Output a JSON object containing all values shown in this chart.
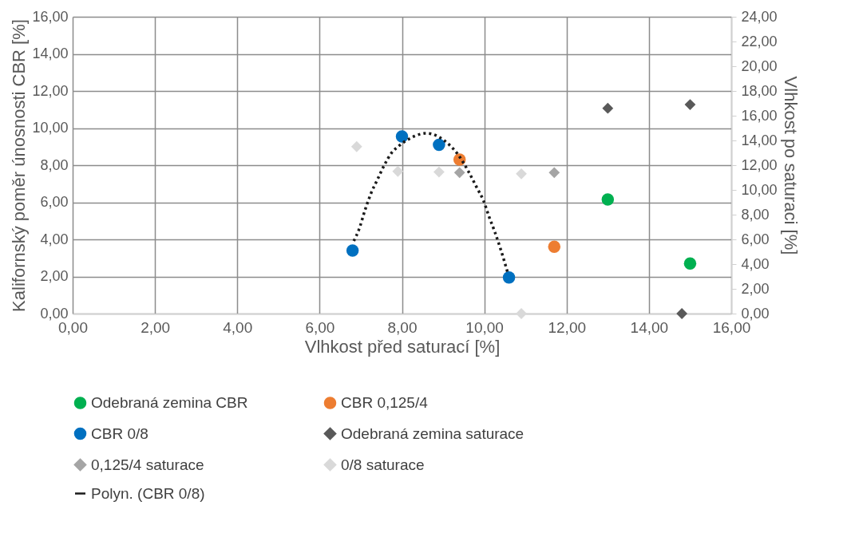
{
  "chart_data": {
    "type": "scatter",
    "xlabel": "Vlhkost před saturací [%]",
    "ylabel": "Kalifornský poměr únosnosti CBR [%]",
    "y2label": "Vlhkost po saturaci [%]",
    "xlim": [
      0,
      16
    ],
    "ylim": [
      0,
      16
    ],
    "y2lim": [
      0,
      24
    ],
    "xticks": [
      {
        "value": 0,
        "label": "0,00"
      },
      {
        "value": 2,
        "label": "2,00"
      },
      {
        "value": 4,
        "label": "4,00"
      },
      {
        "value": 6,
        "label": "6,00"
      },
      {
        "value": 8,
        "label": "8,00"
      },
      {
        "value": 10,
        "label": "10,00"
      },
      {
        "value": 12,
        "label": "12,00"
      },
      {
        "value": 14,
        "label": "14,00"
      },
      {
        "value": 16,
        "label": "16,00"
      }
    ],
    "yticks": [
      {
        "value": 0,
        "label": "0,00"
      },
      {
        "value": 2,
        "label": "2,00"
      },
      {
        "value": 4,
        "label": "4,00"
      },
      {
        "value": 6,
        "label": "6,00"
      },
      {
        "value": 8,
        "label": "8,00"
      },
      {
        "value": 10,
        "label": "10,00"
      },
      {
        "value": 12,
        "label": "12,00"
      },
      {
        "value": 14,
        "label": "14,00"
      },
      {
        "value": 16,
        "label": "16,00"
      }
    ],
    "y2ticks": [
      {
        "value": 0,
        "label": "0,00"
      },
      {
        "value": 2,
        "label": "2,00"
      },
      {
        "value": 4,
        "label": "4,00"
      },
      {
        "value": 6,
        "label": "6,00"
      },
      {
        "value": 8,
        "label": "8,00"
      },
      {
        "value": 10,
        "label": "10,00"
      },
      {
        "value": 12,
        "label": "12,00"
      },
      {
        "value": 14,
        "label": "14,00"
      },
      {
        "value": 16,
        "label": "16,00"
      },
      {
        "value": 18,
        "label": "18,00"
      },
      {
        "value": 20,
        "label": "20,00"
      },
      {
        "value": 22,
        "label": "22,00"
      },
      {
        "value": 24,
        "label": "24,00"
      }
    ],
    "grid": true,
    "legend": "bottom",
    "series": [
      {
        "name": "Odebraná zemina CBR",
        "color": "#00b050",
        "marker": "circle",
        "x": [
          13,
          15
        ],
        "values": [
          6.15,
          2.7
        ]
      },
      {
        "name": "CBR 0,125/4",
        "color": "#ed7d31",
        "marker": "circle",
        "x": [
          9.4,
          11.7
        ],
        "values": [
          8.3,
          3.6
        ]
      },
      {
        "name": "CBR 0/8",
        "color": "#0070c0",
        "marker": "circle",
        "x": [
          6.8,
          8.0,
          8.9,
          10.6
        ],
        "values": [
          3.4,
          9.55,
          9.1,
          1.95
        ]
      },
      {
        "name": "Odebraná zemina saturace",
        "color": "#595959",
        "marker": "diamond",
        "axis": "y2",
        "x": [
          13,
          15,
          14.8
        ],
        "values": [
          16.6,
          16.9,
          0
        ]
      },
      {
        "name": "0,125/4 saturace",
        "color": "#a5a5a5",
        "marker": "diamond",
        "axis": "y2",
        "x": [
          9.4,
          11.7
        ],
        "values": [
          11.4,
          11.4
        ]
      },
      {
        "name": "0/8 saturace",
        "color": "#d9d9d9",
        "marker": "diamond",
        "axis": "y2",
        "x": [
          6.9,
          7.9,
          8.9,
          10.9,
          10.9
        ],
        "values": [
          13.5,
          11.5,
          11.45,
          11.3,
          0
        ]
      },
      {
        "name": "Polyn. (CBR 0/8)",
        "type": "line",
        "line_style": "dotted",
        "color": "#1a1a1a",
        "x": [
          6.83,
          6.96,
          7.1,
          7.25,
          7.41,
          7.58,
          7.75,
          7.92,
          8.17,
          8.46,
          8.6,
          8.89,
          9.15,
          9.36,
          9.62,
          9.83,
          9.98,
          10.12,
          10.25,
          10.4,
          10.58
        ],
        "values": [
          3.91,
          4.56,
          5.56,
          6.49,
          7.25,
          8.04,
          8.67,
          9.03,
          9.41,
          9.68,
          9.72,
          9.53,
          9.1,
          8.58,
          7.64,
          6.74,
          6.09,
          5.2,
          4.44,
          3.45,
          2.12
        ]
      }
    ]
  }
}
